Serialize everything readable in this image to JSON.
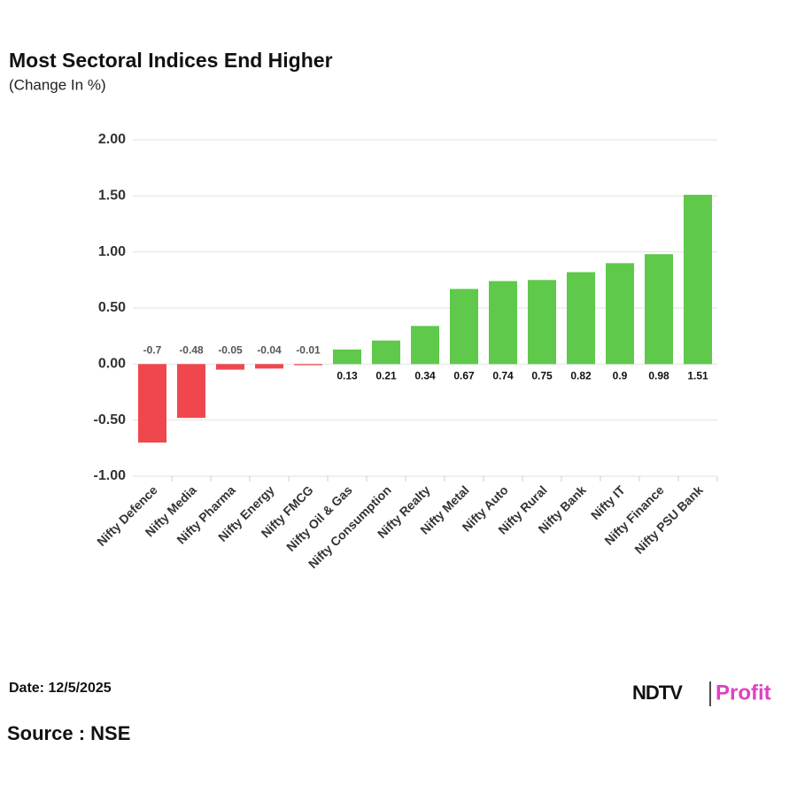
{
  "chart_data": {
    "type": "bar",
    "title": "Most Sectoral Indices End Higher",
    "subtitle": "(Change In %)",
    "categories": [
      "Nifty Defence",
      "Nifty Media",
      "Nifty Pharma",
      "Nifty Energy",
      "Nifty FMCG",
      "Nifty Oil & Gas",
      "Nifty Consumption",
      "Nifty Realty",
      "Nifty Metal",
      "Nifty Auto",
      "Nifty Rural",
      "Nifty Bank",
      "Nifty IT",
      "Nifty Finance",
      "Nifty PSU Bank"
    ],
    "values": [
      -0.7,
      -0.48,
      -0.05,
      -0.04,
      -0.01,
      0.13,
      0.21,
      0.34,
      0.67,
      0.74,
      0.75,
      0.82,
      0.9,
      0.98,
      1.51
    ],
    "positive_color": "#5ec94a",
    "negative_color": "#f0474e",
    "ylim": [
      -1,
      2
    ],
    "yticks": [
      {
        "value": -1,
        "label": "-1.00"
      },
      {
        "value": -0.5,
        "label": "-0.50"
      },
      {
        "value": 0,
        "label": "0.00"
      },
      {
        "value": 0.5,
        "label": "0.50"
      },
      {
        "value": 1,
        "label": "1.00"
      },
      {
        "value": 1.5,
        "label": "1.50"
      },
      {
        "value": 2,
        "label": "2.00"
      }
    ],
    "grid": true
  },
  "footer": {
    "date": "Date: 12/5/2025",
    "source": "Source : NSE",
    "logo_left": "NDTV",
    "logo_right": "Profit"
  }
}
